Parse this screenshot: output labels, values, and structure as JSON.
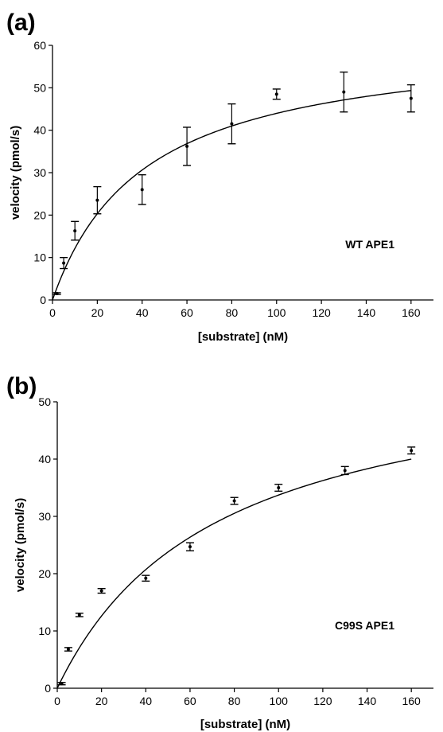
{
  "chart_data": [
    {
      "type": "scatter",
      "panel_label": "(a)",
      "xlabel": "[substrate] (nM)",
      "ylabel": "velocity (pmol/s)",
      "annotation": "WT APE1",
      "xlim": [
        0,
        170
      ],
      "ylim": [
        0,
        60
      ],
      "xticks": [
        0,
        20,
        40,
        60,
        80,
        100,
        120,
        140,
        160
      ],
      "yticks": [
        0,
        10,
        20,
        30,
        40,
        50,
        60
      ],
      "grid": false,
      "points": [
        {
          "x": 2,
          "y": 1.5,
          "err": 0.2
        },
        {
          "x": 5,
          "y": 8.7,
          "err": 1.3
        },
        {
          "x": 10,
          "y": 16.3,
          "err": 2.2
        },
        {
          "x": 20,
          "y": 23.5,
          "err": 3.2
        },
        {
          "x": 40,
          "y": 26.0,
          "err": 3.5
        },
        {
          "x": 60,
          "y": 36.2,
          "err": 4.5
        },
        {
          "x": 80,
          "y": 41.5,
          "err": 4.7
        },
        {
          "x": 100,
          "y": 48.5,
          "err": 1.2
        },
        {
          "x": 130,
          "y": 49.0,
          "err": 4.7
        },
        {
          "x": 160,
          "y": 47.5,
          "err": 3.2
        }
      ],
      "fit": {
        "model": "michaelis-menten",
        "vmax": 62,
        "km": 41
      }
    },
    {
      "type": "scatter",
      "panel_label": "(b)",
      "xlabel": "[substrate] (nM)",
      "ylabel": "velocity (pmol/s)",
      "annotation": "C99S APE1",
      "xlim": [
        0,
        170
      ],
      "ylim": [
        0,
        50
      ],
      "xticks": [
        0,
        20,
        40,
        60,
        80,
        100,
        120,
        140,
        160
      ],
      "yticks": [
        0,
        10,
        20,
        30,
        40,
        50
      ],
      "grid": false,
      "points": [
        {
          "x": 2,
          "y": 0.8,
          "err": 0.2
        },
        {
          "x": 5,
          "y": 6.8,
          "err": 0.3
        },
        {
          "x": 10,
          "y": 12.8,
          "err": 0.3
        },
        {
          "x": 20,
          "y": 17.0,
          "err": 0.4
        },
        {
          "x": 40,
          "y": 19.2,
          "err": 0.5
        },
        {
          "x": 60,
          "y": 24.7,
          "err": 0.7
        },
        {
          "x": 80,
          "y": 32.7,
          "err": 0.6
        },
        {
          "x": 100,
          "y": 35.0,
          "err": 0.6
        },
        {
          "x": 130,
          "y": 38.0,
          "err": 0.7
        },
        {
          "x": 160,
          "y": 41.5,
          "err": 0.6
        }
      ],
      "fit": {
        "model": "michaelis-menten",
        "vmax": 58,
        "km": 72
      }
    }
  ]
}
